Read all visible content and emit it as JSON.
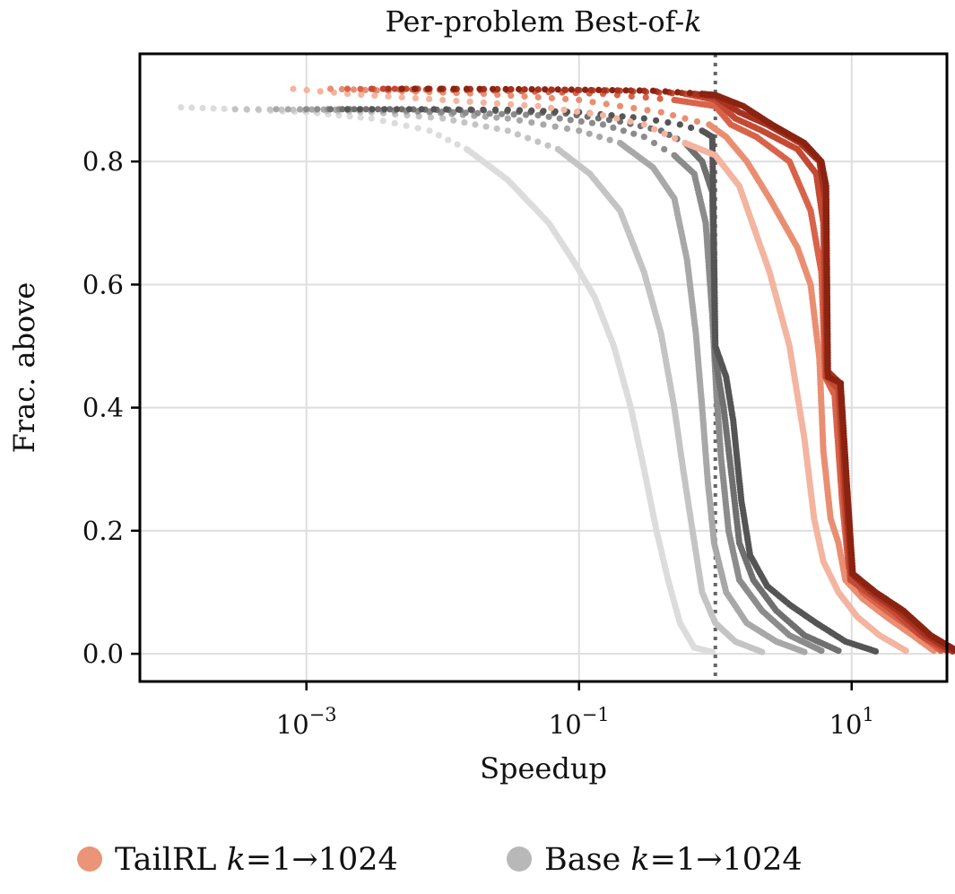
{
  "chart_data": {
    "type": "scatter",
    "title": "Per-problem Best-of-k",
    "xlabel": "Speedup",
    "ylabel": "Frac. above",
    "xscale": "log",
    "xlim": [
      6e-05,
      50
    ],
    "ylim": [
      -0.045,
      0.975
    ],
    "x_ticks": [
      {
        "value": 0.001,
        "base": "10",
        "exp": "−3"
      },
      {
        "value": 0.1,
        "base": "10",
        "exp": "−1"
      },
      {
        "value": 10,
        "base": "10",
        "exp": "1"
      }
    ],
    "y_ticks": [
      {
        "value": 0.0,
        "label": "0.0"
      },
      {
        "value": 0.2,
        "label": "0.2"
      },
      {
        "value": 0.4,
        "label": "0.4"
      },
      {
        "value": 0.6,
        "label": "0.6"
      },
      {
        "value": 0.8,
        "label": "0.8"
      }
    ],
    "reference_line": {
      "x": 1.0,
      "style": "dotted",
      "color": "#666666"
    },
    "grid": true,
    "legend": {
      "placement": "bottom",
      "entries": [
        {
          "prefix": "TailRL ",
          "k": "k",
          "suffix": "=1→1024",
          "color": "#ec9478"
        },
        {
          "prefix": "Base ",
          "k": "k",
          "suffix": "=1→1024",
          "color": "#b8b8b8"
        }
      ]
    },
    "series": [
      {
        "group": "TailRL",
        "k": 1,
        "color": "#f3b4a0",
        "points": [
          [
            0.0008,
            0.918
          ],
          [
            0.002,
            0.91
          ],
          [
            0.01,
            0.9
          ],
          [
            0.05,
            0.89
          ],
          [
            0.15,
            0.875
          ],
          [
            0.3,
            0.86
          ],
          [
            0.6,
            0.83
          ],
          [
            1.0,
            0.81
          ],
          [
            1.5,
            0.76
          ],
          [
            2.5,
            0.62
          ],
          [
            3.5,
            0.5
          ],
          [
            4.5,
            0.35
          ],
          [
            5.3,
            0.22
          ],
          [
            6.2,
            0.15
          ],
          [
            8,
            0.1
          ],
          [
            11,
            0.06
          ],
          [
            16,
            0.03
          ],
          [
            25,
            0.005
          ]
        ]
      },
      {
        "group": "TailRL",
        "k": 4,
        "color": "#ea8e72",
        "points": [
          [
            0.0015,
            0.918
          ],
          [
            0.004,
            0.915
          ],
          [
            0.02,
            0.91
          ],
          [
            0.1,
            0.9
          ],
          [
            0.4,
            0.88
          ],
          [
            0.9,
            0.86
          ],
          [
            1.2,
            0.84
          ],
          [
            1.7,
            0.8
          ],
          [
            2.5,
            0.74
          ],
          [
            4,
            0.66
          ],
          [
            5,
            0.6
          ],
          [
            5.8,
            0.48
          ],
          [
            6.2,
            0.33
          ],
          [
            7,
            0.22
          ],
          [
            8,
            0.18
          ],
          [
            9,
            0.12
          ],
          [
            12,
            0.09
          ],
          [
            18,
            0.06
          ],
          [
            28,
            0.03
          ],
          [
            40,
            0.005
          ]
        ]
      },
      {
        "group": "TailRL",
        "k": 16,
        "color": "#d9634a",
        "points": [
          [
            0.002,
            0.918
          ],
          [
            0.006,
            0.917
          ],
          [
            0.03,
            0.915
          ],
          [
            0.15,
            0.91
          ],
          [
            0.5,
            0.9
          ],
          [
            1.0,
            0.89
          ],
          [
            1.3,
            0.86
          ],
          [
            2,
            0.84
          ],
          [
            3.5,
            0.8
          ],
          [
            5,
            0.72
          ],
          [
            6,
            0.62
          ],
          [
            6.4,
            0.45
          ],
          [
            7.5,
            0.42
          ],
          [
            8.5,
            0.25
          ],
          [
            9.5,
            0.14
          ],
          [
            12,
            0.1
          ],
          [
            18,
            0.07
          ],
          [
            28,
            0.04
          ],
          [
            45,
            0.005
          ]
        ]
      },
      {
        "group": "TailRL",
        "k": 64,
        "color": "#c44a34",
        "points": [
          [
            0.003,
            0.918
          ],
          [
            0.008,
            0.918
          ],
          [
            0.04,
            0.917
          ],
          [
            0.2,
            0.915
          ],
          [
            0.6,
            0.91
          ],
          [
            1.0,
            0.9
          ],
          [
            1.4,
            0.87
          ],
          [
            2.2,
            0.85
          ],
          [
            4,
            0.82
          ],
          [
            5.5,
            0.78
          ],
          [
            6.2,
            0.7
          ],
          [
            6.5,
            0.45
          ],
          [
            8,
            0.43
          ],
          [
            8.8,
            0.26
          ],
          [
            9.8,
            0.12
          ],
          [
            13,
            0.1
          ],
          [
            20,
            0.07
          ],
          [
            32,
            0.03
          ],
          [
            50,
            0.005
          ]
        ]
      },
      {
        "group": "TailRL",
        "k": 256,
        "color": "#a8321f",
        "points": [
          [
            0.004,
            0.918
          ],
          [
            0.01,
            0.918
          ],
          [
            0.05,
            0.917
          ],
          [
            0.3,
            0.915
          ],
          [
            0.7,
            0.91
          ],
          [
            1.0,
            0.905
          ],
          [
            1.5,
            0.88
          ],
          [
            2.4,
            0.86
          ],
          [
            4.2,
            0.83
          ],
          [
            5.8,
            0.8
          ],
          [
            6.4,
            0.74
          ],
          [
            6.6,
            0.46
          ],
          [
            8.2,
            0.44
          ],
          [
            9,
            0.27
          ],
          [
            10,
            0.13
          ],
          [
            14,
            0.1
          ],
          [
            22,
            0.07
          ],
          [
            35,
            0.03
          ],
          [
            55,
            0.004
          ]
        ]
      },
      {
        "group": "TailRL",
        "k": 1024,
        "color": "#8a2311",
        "points": [
          [
            0.005,
            0.918
          ],
          [
            0.015,
            0.918
          ],
          [
            0.07,
            0.917
          ],
          [
            0.35,
            0.915
          ],
          [
            0.8,
            0.91
          ],
          [
            1.0,
            0.908
          ],
          [
            1.6,
            0.89
          ],
          [
            2.6,
            0.86
          ],
          [
            4.5,
            0.83
          ],
          [
            6,
            0.8
          ],
          [
            6.5,
            0.76
          ],
          [
            6.7,
            0.45
          ],
          [
            8.3,
            0.44
          ],
          [
            9.2,
            0.28
          ],
          [
            10.2,
            0.13
          ],
          [
            15,
            0.1
          ],
          [
            24,
            0.07
          ],
          [
            38,
            0.03
          ],
          [
            60,
            0.004
          ]
        ]
      },
      {
        "group": "Base",
        "k": 1,
        "color": "#dcdcdc",
        "points": [
          [
            0.00012,
            0.888
          ],
          [
            0.0003,
            0.885
          ],
          [
            0.001,
            0.88
          ],
          [
            0.003,
            0.87
          ],
          [
            0.008,
            0.85
          ],
          [
            0.015,
            0.82
          ],
          [
            0.03,
            0.77
          ],
          [
            0.06,
            0.7
          ],
          [
            0.09,
            0.64
          ],
          [
            0.13,
            0.58
          ],
          [
            0.18,
            0.5
          ],
          [
            0.24,
            0.4
          ],
          [
            0.3,
            0.3
          ],
          [
            0.37,
            0.2
          ],
          [
            0.45,
            0.12
          ],
          [
            0.55,
            0.05
          ],
          [
            0.7,
            0.01
          ],
          [
            0.95,
            0.003
          ]
        ]
      },
      {
        "group": "Base",
        "k": 4,
        "color": "#c4c4c4",
        "points": [
          [
            0.0003,
            0.885
          ],
          [
            0.0008,
            0.884
          ],
          [
            0.003,
            0.88
          ],
          [
            0.01,
            0.87
          ],
          [
            0.03,
            0.85
          ],
          [
            0.07,
            0.82
          ],
          [
            0.12,
            0.78
          ],
          [
            0.2,
            0.72
          ],
          [
            0.3,
            0.62
          ],
          [
            0.4,
            0.52
          ],
          [
            0.5,
            0.4
          ],
          [
            0.58,
            0.3
          ],
          [
            0.68,
            0.2
          ],
          [
            0.8,
            0.1
          ],
          [
            1.0,
            0.05
          ],
          [
            1.4,
            0.02
          ],
          [
            2.2,
            0.003
          ]
        ]
      },
      {
        "group": "Base",
        "k": 16,
        "color": "#a8a8a8",
        "points": [
          [
            0.0006,
            0.885
          ],
          [
            0.002,
            0.884
          ],
          [
            0.008,
            0.88
          ],
          [
            0.03,
            0.87
          ],
          [
            0.1,
            0.85
          ],
          [
            0.2,
            0.83
          ],
          [
            0.35,
            0.79
          ],
          [
            0.5,
            0.74
          ],
          [
            0.62,
            0.64
          ],
          [
            0.72,
            0.52
          ],
          [
            0.8,
            0.4
          ],
          [
            0.88,
            0.28
          ],
          [
            0.98,
            0.18
          ],
          [
            1.2,
            0.1
          ],
          [
            1.7,
            0.05
          ],
          [
            2.8,
            0.02
          ],
          [
            4.5,
            0.003
          ]
        ]
      },
      {
        "group": "Base",
        "k": 64,
        "color": "#8c8c8c",
        "points": [
          [
            0.001,
            0.885
          ],
          [
            0.003,
            0.885
          ],
          [
            0.012,
            0.88
          ],
          [
            0.05,
            0.875
          ],
          [
            0.15,
            0.86
          ],
          [
            0.3,
            0.84
          ],
          [
            0.5,
            0.81
          ],
          [
            0.7,
            0.78
          ],
          [
            0.85,
            0.7
          ],
          [
            0.95,
            0.55
          ],
          [
            1.02,
            0.42
          ],
          [
            1.1,
            0.32
          ],
          [
            1.25,
            0.2
          ],
          [
            1.5,
            0.12
          ],
          [
            2.2,
            0.07
          ],
          [
            3.5,
            0.03
          ],
          [
            6,
            0.005
          ]
        ]
      },
      {
        "group": "Base",
        "k": 256,
        "color": "#707070",
        "points": [
          [
            0.0015,
            0.885
          ],
          [
            0.005,
            0.885
          ],
          [
            0.02,
            0.883
          ],
          [
            0.08,
            0.878
          ],
          [
            0.2,
            0.865
          ],
          [
            0.4,
            0.85
          ],
          [
            0.6,
            0.83
          ],
          [
            0.8,
            0.8
          ],
          [
            0.95,
            0.75
          ],
          [
            1.0,
            0.48
          ],
          [
            1.15,
            0.4
          ],
          [
            1.3,
            0.3
          ],
          [
            1.5,
            0.18
          ],
          [
            1.9,
            0.12
          ],
          [
            2.8,
            0.07
          ],
          [
            4.5,
            0.03
          ],
          [
            8,
            0.005
          ]
        ]
      },
      {
        "group": "Base",
        "k": 1024,
        "color": "#555555",
        "points": [
          [
            0.002,
            0.885
          ],
          [
            0.007,
            0.885
          ],
          [
            0.03,
            0.884
          ],
          [
            0.1,
            0.88
          ],
          [
            0.3,
            0.87
          ],
          [
            0.55,
            0.86
          ],
          [
            0.8,
            0.85
          ],
          [
            0.95,
            0.84
          ],
          [
            1.0,
            0.5
          ],
          [
            1.2,
            0.45
          ],
          [
            1.35,
            0.38
          ],
          [
            1.55,
            0.25
          ],
          [
            1.8,
            0.16
          ],
          [
            2.4,
            0.11
          ],
          [
            3.5,
            0.08
          ],
          [
            5.5,
            0.05
          ],
          [
            9,
            0.02
          ],
          [
            15,
            0.004
          ]
        ]
      }
    ]
  }
}
